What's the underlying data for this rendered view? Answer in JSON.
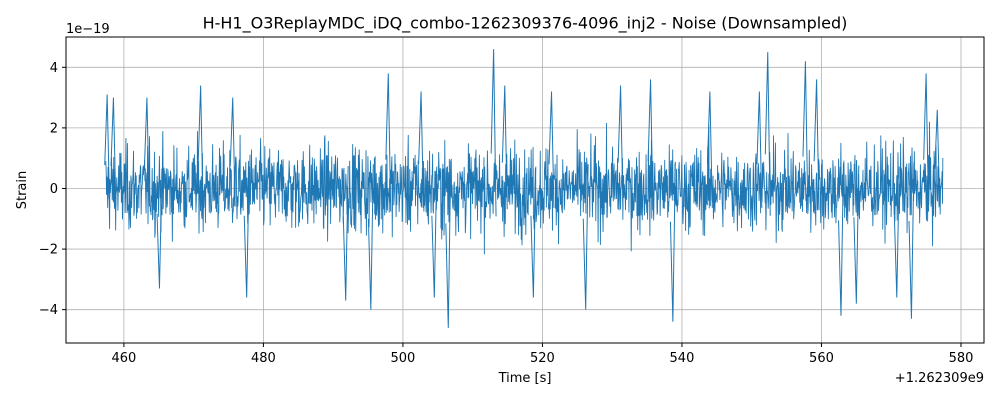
{
  "chart_data": {
    "type": "line",
    "title": "H-H1_O3ReplayMDC_iDQ_combo-1262309376-4096_inj2 - Noise (Downsampled)",
    "xlabel": "Time [s]",
    "ylabel": "Strain",
    "x_offset_label": "+1.262309e9",
    "y_scale_label": "1e−19",
    "xlim": [
      451.7,
      583.3
    ],
    "ylim": [
      -5.1,
      5.0
    ],
    "x_range": [
      457.4,
      577.4
    ],
    "x_ticks": [
      460,
      480,
      500,
      520,
      540,
      560,
      580
    ],
    "x_tick_labels": [
      "460",
      "480",
      "500",
      "520",
      "540",
      "560",
      "580"
    ],
    "y_ticks": [
      -4,
      -2,
      0,
      2,
      4
    ],
    "y_tick_labels": [
      "−4",
      "−2",
      "0",
      "2",
      "4"
    ],
    "grid": true,
    "series_color": "#1f77b4",
    "series": [
      {
        "envelope_typical": 1.5,
        "noise_peaks": [
          {
            "x": 457.6,
            "y": 3.1
          },
          {
            "x": 458.5,
            "y": 3.0
          },
          {
            "x": 463.3,
            "y": 3.0
          },
          {
            "x": 465.1,
            "y": -3.3
          },
          {
            "x": 471.0,
            "y": 3.4
          },
          {
            "x": 475.6,
            "y": 3.0
          },
          {
            "x": 477.6,
            "y": -3.6
          },
          {
            "x": 491.8,
            "y": -3.7
          },
          {
            "x": 495.4,
            "y": -4.0
          },
          {
            "x": 497.9,
            "y": 3.8
          },
          {
            "x": 502.6,
            "y": 3.2
          },
          {
            "x": 504.5,
            "y": -3.6
          },
          {
            "x": 506.5,
            "y": -4.6
          },
          {
            "x": 513.0,
            "y": 4.6
          },
          {
            "x": 514.6,
            "y": 3.4
          },
          {
            "x": 518.7,
            "y": -3.6
          },
          {
            "x": 521.3,
            "y": 3.2
          },
          {
            "x": 526.2,
            "y": -4.0
          },
          {
            "x": 531.2,
            "y": 3.4
          },
          {
            "x": 535.5,
            "y": 3.6
          },
          {
            "x": 538.7,
            "y": -4.4
          },
          {
            "x": 544.0,
            "y": 3.2
          },
          {
            "x": 551.1,
            "y": 3.2
          },
          {
            "x": 552.3,
            "y": 4.5
          },
          {
            "x": 557.7,
            "y": 4.2
          },
          {
            "x": 559.3,
            "y": 3.6
          },
          {
            "x": 562.8,
            "y": -4.2
          },
          {
            "x": 565.0,
            "y": -3.8
          },
          {
            "x": 570.8,
            "y": -3.6
          },
          {
            "x": 572.9,
            "y": -4.3
          },
          {
            "x": 575.0,
            "y": 3.8
          },
          {
            "x": 576.6,
            "y": 2.6
          }
        ]
      }
    ]
  }
}
